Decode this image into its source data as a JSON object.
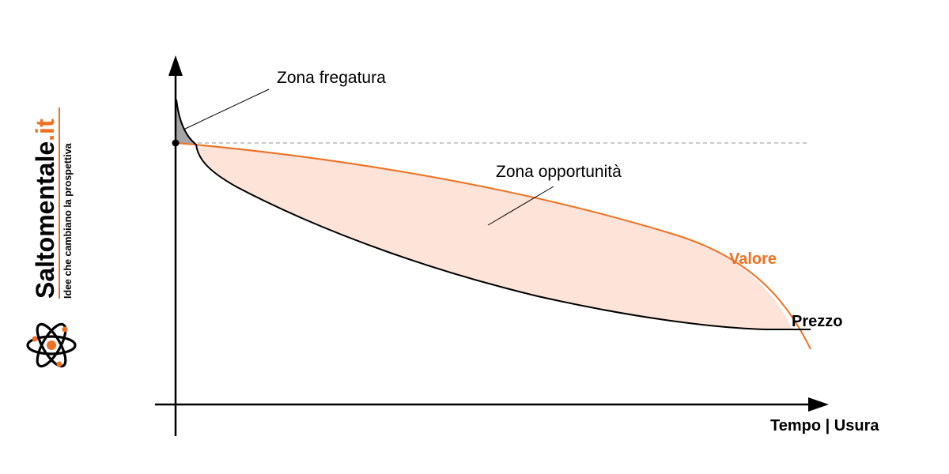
{
  "brand": {
    "name_main": "Saltomentale",
    "name_tld": ".it",
    "tagline": "Idee che cambiano la prospettiva",
    "logo_icon": "atom-icon",
    "accent_color": "#f07021"
  },
  "diagram": {
    "x_axis_label": "Tempo | Usura",
    "value_label": "Valore",
    "price_label": "Prezzo",
    "fregatura_label": "Zona fregatura",
    "opportunity_label": "Zona opportunità"
  },
  "colors": {
    "value_curve": "#f07021",
    "price_curve": "#000000",
    "opportunity_fill": "#fde3d8",
    "fregatura_fill": "#a6a6a6",
    "reference_line": "#aaaaaa"
  }
}
